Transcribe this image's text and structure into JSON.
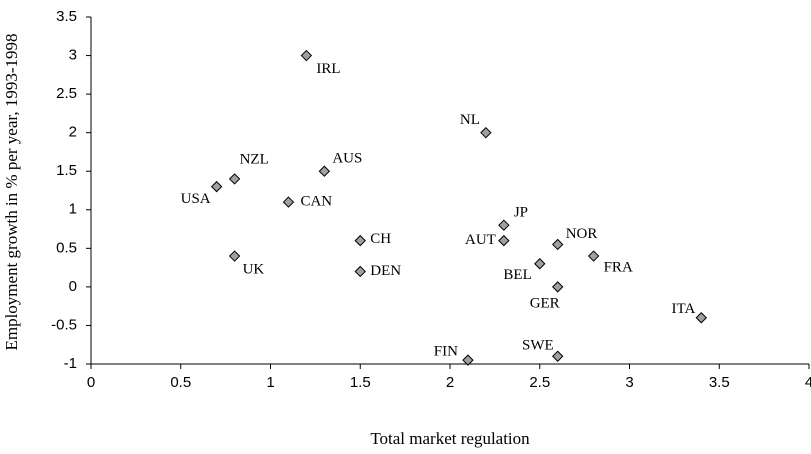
{
  "chart_data": {
    "type": "scatter",
    "x_label": "Total market regulation",
    "y_label": "Employment growth in % per year, 1993-1998",
    "labels": [
      "IRL",
      "NL",
      "NZL",
      "AUS",
      "USA",
      "CAN",
      "JP",
      "AUT",
      "NOR",
      "CH",
      "UK",
      "FRA",
      "BEL",
      "DEN",
      "GER",
      "ITA",
      "SWE",
      "FIN"
    ],
    "x": [
      1.2,
      2.2,
      0.8,
      1.3,
      0.7,
      1.1,
      2.3,
      2.3,
      2.6,
      1.5,
      0.8,
      2.8,
      2.5,
      1.5,
      2.6,
      3.4,
      2.6,
      2.1
    ],
    "values": [
      3.0,
      2.0,
      1.4,
      1.5,
      1.3,
      1.1,
      0.8,
      0.6,
      0.55,
      0.6,
      0.4,
      0.4,
      0.3,
      0.2,
      0.0,
      -0.4,
      -0.9,
      -0.95
    ],
    "color": "#a0a0a0",
    "xlim": [
      0,
      4
    ],
    "xticks": [
      0,
      0.5,
      1,
      1.5,
      2,
      2.5,
      3,
      3.5,
      4
    ],
    "ylim": [
      -1,
      3.5
    ],
    "yticks": [
      -1,
      -0.5,
      0,
      0.5,
      1,
      1.5,
      2,
      2.5,
      3,
      3.5
    ],
    "grid": false
  }
}
